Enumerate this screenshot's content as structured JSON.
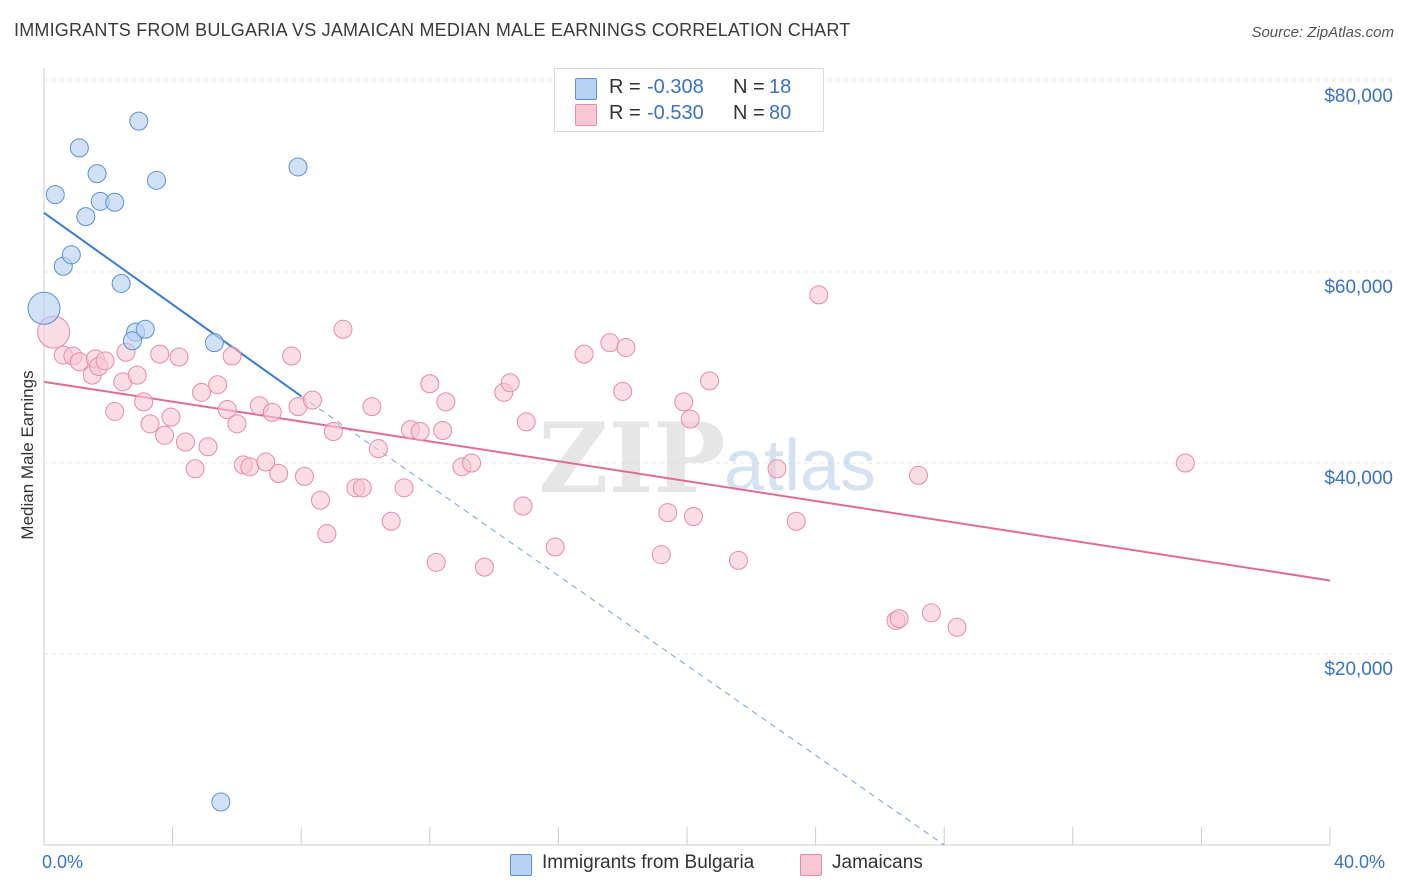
{
  "header": {
    "title": "IMMIGRANTS FROM BULGARIA VS JAMAICAN MEDIAN MALE EARNINGS CORRELATION CHART",
    "source": "Source: ZipAtlas.com"
  },
  "watermark": {
    "zip": "ZIP",
    "atlas": "atlas"
  },
  "colors": {
    "blue_fill": "#b8d2f3",
    "blue_stroke": "#5b8fd8",
    "blue_line": "#3a7bd5",
    "pink_fill": "#f9c6d6",
    "pink_stroke": "#e88aa7",
    "pink_line": "#e36a96",
    "tick_text": "#3a72c6",
    "grid": "#e6e6e6"
  },
  "legend_top": {
    "series": [
      {
        "r_label": "R =",
        "r_value": "-0.308",
        "n_label": "N =",
        "n_value": "18"
      },
      {
        "r_label": "R =",
        "r_value": "-0.530",
        "n_label": "N =",
        "n_value": "80"
      }
    ]
  },
  "legend_bottom": {
    "items": [
      {
        "label": "Immigrants from Bulgaria"
      },
      {
        "label": "Jamaicans"
      }
    ]
  },
  "chart_data": {
    "type": "scatter",
    "title": "IMMIGRANTS FROM BULGARIA VS JAMAICAN MEDIAN MALE EARNINGS CORRELATION CHART",
    "xlabel": "",
    "ylabel": "Median Male Earnings",
    "xlim": [
      0,
      40
    ],
    "ylim": [
      0,
      82000
    ],
    "x_tick_labels": [
      "0.0%",
      "40.0%"
    ],
    "y_tick_values": [
      20000,
      40000,
      60000,
      80000
    ],
    "y_tick_labels": [
      "$20,000",
      "$40,000",
      "$60,000",
      "$80,000"
    ],
    "grid": "horizontal dashed",
    "legend_position": "top-center and bottom",
    "series": [
      {
        "name": "Immigrants from Bulgaria",
        "color": "#5b8fd8",
        "points": [
          [
            0.0,
            56200
          ],
          [
            0.35,
            68100
          ],
          [
            0.6,
            60600
          ],
          [
            0.85,
            61800
          ],
          [
            1.1,
            73000
          ],
          [
            1.3,
            65800
          ],
          [
            1.65,
            70300
          ],
          [
            1.75,
            67400
          ],
          [
            2.2,
            67300
          ],
          [
            2.4,
            58800
          ],
          [
            2.85,
            53700
          ],
          [
            2.75,
            52800
          ],
          [
            2.95,
            75800
          ],
          [
            3.15,
            54000
          ],
          [
            3.5,
            69600
          ],
          [
            5.3,
            52600
          ],
          [
            5.5,
            4500
          ],
          [
            7.9,
            71000
          ]
        ],
        "trend": {
          "x": [
            0,
            8.0
          ],
          "y": [
            66200,
            47000
          ],
          "extended_dashed_to": [
            28.0,
            0
          ]
        }
      },
      {
        "name": "Jamaicans",
        "color": "#e88aa7",
        "points": [
          [
            0.3,
            53700
          ],
          [
            0.6,
            51300
          ],
          [
            0.9,
            51200
          ],
          [
            1.1,
            50600
          ],
          [
            1.5,
            49200
          ],
          [
            1.6,
            50900
          ],
          [
            1.7,
            50100
          ],
          [
            1.9,
            50700
          ],
          [
            2.2,
            45400
          ],
          [
            2.45,
            48500
          ],
          [
            2.55,
            51600
          ],
          [
            2.9,
            49200
          ],
          [
            3.1,
            46400
          ],
          [
            3.3,
            44100
          ],
          [
            3.6,
            51400
          ],
          [
            3.75,
            42900
          ],
          [
            3.95,
            44800
          ],
          [
            4.2,
            51100
          ],
          [
            4.4,
            42200
          ],
          [
            4.7,
            39400
          ],
          [
            4.9,
            47400
          ],
          [
            5.1,
            41700
          ],
          [
            5.4,
            48200
          ],
          [
            5.7,
            45600
          ],
          [
            5.85,
            51200
          ],
          [
            6.0,
            44100
          ],
          [
            6.2,
            39800
          ],
          [
            6.4,
            39600
          ],
          [
            6.7,
            46000
          ],
          [
            6.9,
            40100
          ],
          [
            7.1,
            45300
          ],
          [
            7.3,
            38900
          ],
          [
            7.7,
            51200
          ],
          [
            7.9,
            45900
          ],
          [
            8.1,
            38600
          ],
          [
            8.35,
            46600
          ],
          [
            8.6,
            36100
          ],
          [
            8.8,
            32600
          ],
          [
            9.0,
            43300
          ],
          [
            9.3,
            54000
          ],
          [
            9.7,
            37400
          ],
          [
            9.9,
            37400
          ],
          [
            10.2,
            45900
          ],
          [
            10.4,
            41500
          ],
          [
            10.8,
            33900
          ],
          [
            11.2,
            37400
          ],
          [
            11.4,
            43500
          ],
          [
            11.7,
            43300
          ],
          [
            12.0,
            48300
          ],
          [
            12.2,
            29600
          ],
          [
            12.5,
            46400
          ],
          [
            12.4,
            43400
          ],
          [
            13.0,
            39600
          ],
          [
            13.3,
            40000
          ],
          [
            13.7,
            29100
          ],
          [
            14.3,
            47400
          ],
          [
            14.5,
            48400
          ],
          [
            14.9,
            35500
          ],
          [
            15.0,
            44300
          ],
          [
            15.9,
            31200
          ],
          [
            16.8,
            51400
          ],
          [
            17.6,
            52600
          ],
          [
            18.0,
            47500
          ],
          [
            18.1,
            52100
          ],
          [
            19.2,
            30400
          ],
          [
            19.4,
            34800
          ],
          [
            19.9,
            46400
          ],
          [
            20.1,
            44600
          ],
          [
            20.2,
            34400
          ],
          [
            20.7,
            48600
          ],
          [
            21.6,
            29800
          ],
          [
            22.8,
            39400
          ],
          [
            23.4,
            33900
          ],
          [
            24.1,
            57600
          ],
          [
            26.5,
            23500
          ],
          [
            26.6,
            23700
          ],
          [
            27.2,
            38700
          ],
          [
            27.6,
            24300
          ],
          [
            28.4,
            22800
          ],
          [
            35.5,
            40000
          ]
        ],
        "trend": {
          "x": [
            0,
            40
          ],
          "y": [
            48500,
            27700
          ]
        }
      }
    ]
  },
  "labels": {
    "y_axis": "Median Male Earnings"
  }
}
